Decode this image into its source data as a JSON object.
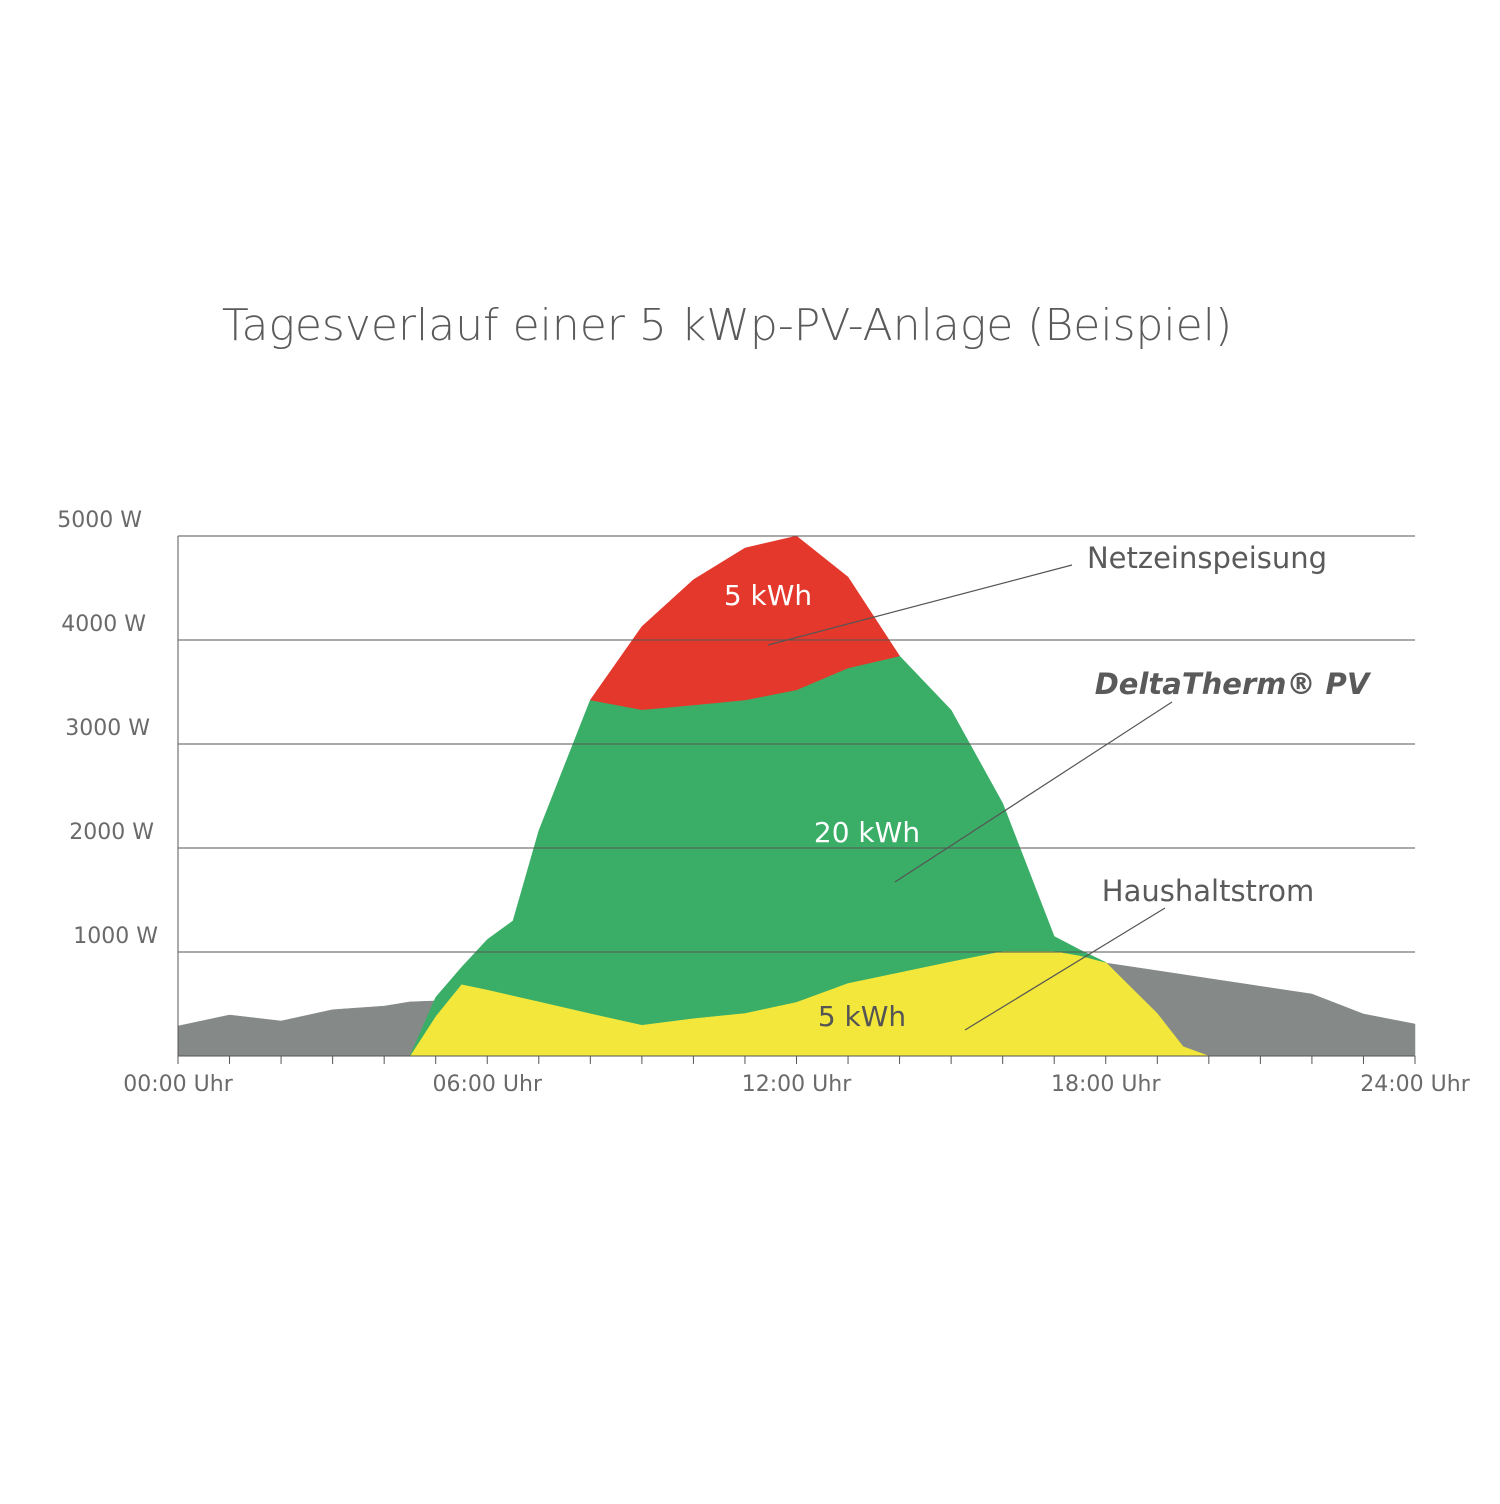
{
  "chart_data": {
    "type": "area",
    "title": "Tagesverlauf einer 5 kWp-PV-Anlage (Beispiel)",
    "x": [
      0,
      1,
      2,
      3,
      4,
      4.5,
      5,
      5.5,
      6,
      6.5,
      7,
      8,
      9,
      10,
      11,
      12,
      13,
      14,
      15,
      16,
      17,
      17.5,
      18,
      19,
      19.5,
      20,
      21,
      22,
      23,
      24
    ],
    "xlim": [
      0,
      24
    ],
    "xticks": [
      {
        "value": 0,
        "label": "00:00 Uhr"
      },
      {
        "value": 1,
        "label": null
      },
      {
        "value": 2,
        "label": null
      },
      {
        "value": 3,
        "label": null
      },
      {
        "value": 4,
        "label": null
      },
      {
        "value": 5,
        "label": null
      },
      {
        "value": 6,
        "label": "06:00 Uhr"
      },
      {
        "value": 7,
        "label": null
      },
      {
        "value": 8,
        "label": null
      },
      {
        "value": 9,
        "label": null
      },
      {
        "value": 10,
        "label": null
      },
      {
        "value": 11,
        "label": null
      },
      {
        "value": 12,
        "label": "12:00 Uhr"
      },
      {
        "value": 13,
        "label": null
      },
      {
        "value": 14,
        "label": null
      },
      {
        "value": 15,
        "label": null
      },
      {
        "value": 16,
        "label": null
      },
      {
        "value": 17,
        "label": null
      },
      {
        "value": 18,
        "label": "18:00 Uhr"
      },
      {
        "value": 19,
        "label": null
      },
      {
        "value": 20,
        "label": null
      },
      {
        "value": 21,
        "label": null
      },
      {
        "value": 22,
        "label": null
      },
      {
        "value": 23,
        "label": null
      },
      {
        "value": 24,
        "label": "24:00 Uhr"
      }
    ],
    "ylim": [
      0,
      5000
    ],
    "yticks": [
      {
        "value": 1000,
        "label": "1000 W"
      },
      {
        "value": 2000,
        "label": "2000 W"
      },
      {
        "value": 3000,
        "label": "3000 W"
      },
      {
        "value": 4000,
        "label": "4000 W"
      },
      {
        "value": 5000,
        "label": "5000 W"
      }
    ],
    "grid": true,
    "series": [
      {
        "color": "#858a89",
        "stacked": false,
        "values": [
          288,
          394,
          337,
          445,
          480,
          520,
          530,
          540,
          550,
          570,
          580,
          610,
          640,
          670,
          700,
          725,
          755,
          780,
          810,
          840,
          870,
          880,
          894,
          820,
          783,
          745,
          670,
          596,
          404,
          308
        ]
      },
      {
        "name": "Haushaltstrom",
        "label": "5 kWh",
        "color": "#f2e73a",
        "stacked": true,
        "values": [
          null,
          null,
          null,
          null,
          null,
          0,
          384,
          690,
          638,
          582,
          525,
          411,
          300,
          363,
          413,
          520,
          702,
          806,
          910,
          1010,
          1010,
          965,
          900,
          409,
          90,
          0,
          null,
          null,
          null,
          null
        ]
      },
      {
        "name": "DeltaTherm® PV",
        "label": "20 kWh",
        "color": "#3aae67",
        "stacked": true,
        "values": [
          null,
          null,
          null,
          null,
          null,
          0,
          180,
          163,
          482,
          718,
          1640,
          3012,
          3030,
          3012,
          3010,
          3000,
          3029,
          3040,
          2417,
          1420,
          140,
          55,
          0,
          null,
          null,
          null,
          null,
          null,
          null,
          null
        ]
      },
      {
        "name": "Netzeinspeisung",
        "label": "5 kWh",
        "color": "#e4382c",
        "stacked": true,
        "values": [
          null,
          null,
          null,
          null,
          null,
          null,
          null,
          null,
          null,
          null,
          null,
          0,
          800,
          1205,
          1462,
          1480,
          875,
          0,
          null,
          null,
          null,
          null,
          null,
          null,
          null,
          null,
          null,
          null,
          null,
          null
        ]
      }
    ]
  }
}
